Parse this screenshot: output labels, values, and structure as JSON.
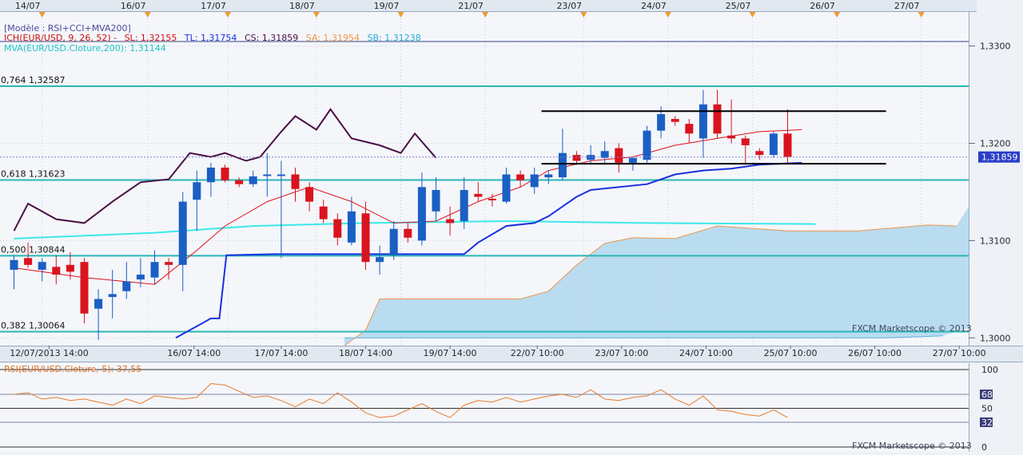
{
  "legend": {
    "model": "[Modèle : RSI+CCI+MVA200]",
    "ich_label": "ICH(EUR/USD, 9, 26, 52) -",
    "sl": "SL: 1,32155",
    "tl": "TL: 1,31754",
    "cs": "CS: 1,31859",
    "sa": "SA: 1,31954",
    "sb": "SB: 1,31238",
    "mva": "MVA(EUR/USD.Cloture,200): 1,31144"
  },
  "rsi_legend": "RSI(EUR/USD.Cloture, 5): 37,55",
  "watermark_main": "FXCM Marketscope © 2013",
  "watermark_rsi": "FXCM Marketscope © 2013",
  "current_price_label": "1,31859",
  "colors": {
    "bull": "#1a5fc4",
    "bear": "#d9141e",
    "tenkan": "#e0101a",
    "kijun": "#1a2fe0",
    "chikou": "#4b0e44",
    "senkou_b": "#f0954a",
    "cloud": "#b4d9ee",
    "mva": "#3ce8e8",
    "fib": "#2ab7b7",
    "rsi": "#e87a2a",
    "box": "#000000",
    "grid": "#c4cfe0"
  },
  "chart_data": [
    {
      "type": "candlestick",
      "title": "",
      "y_range": [
        1.2992,
        1.3335
      ],
      "x_range": [
        0,
        53
      ],
      "top_date_labels": [
        {
          "label": "14/07",
          "x": 2
        },
        {
          "label": "16/07",
          "x": 9.5
        },
        {
          "label": "17/07",
          "x": 15.2
        },
        {
          "label": "18/07",
          "x": 21.5
        },
        {
          "label": "19/07",
          "x": 27.5
        },
        {
          "label": "21/07",
          "x": 33.5
        },
        {
          "label": "23/07",
          "x": 40.5
        },
        {
          "label": "24/07",
          "x": 46.5
        },
        {
          "label": "25/07",
          "x": 52.5
        },
        {
          "label": "26/07",
          "x": 58.5
        },
        {
          "label": "27/07",
          "x": 64.5
        }
      ],
      "bottom_time_labels": [
        {
          "label": "12/07/2013 14:00",
          "x": 2.5
        },
        {
          "label": "16/07 14:00",
          "x": 12.8
        },
        {
          "label": "17/07 14:00",
          "x": 19
        },
        {
          "label": "18/07 14:00",
          "x": 25
        },
        {
          "label": "19/07 14:00",
          "x": 31
        },
        {
          "label": "22/07 10:00",
          "x": 37.2
        },
        {
          "label": "23/07 10:00",
          "x": 43.2
        },
        {
          "label": "24/07 10:00",
          "x": 49.2
        },
        {
          "label": "25/07 10:00",
          "x": 55.2
        },
        {
          "label": "26/07 10:00",
          "x": 61.2
        },
        {
          "label": "27/07 10:00",
          "x": 67.2
        }
      ],
      "y_ticks": [
        {
          "label": "1,3300",
          "value": 1.33
        },
        {
          "label": "1,3200",
          "value": 1.32
        },
        {
          "label": "1,3100",
          "value": 1.31
        },
        {
          "label": "1,3000",
          "value": 1.3
        }
      ],
      "fib_levels": [
        {
          "label": "0,764 1,32587",
          "value": 1.32587
        },
        {
          "label": "0,618 1,31623",
          "value": 1.31623
        },
        {
          "label": "0,500 1,30844",
          "value": 1.30844
        },
        {
          "label": "0,382 1,30064",
          "value": 1.30064
        }
      ],
      "current_price": 1.31859,
      "candles": [
        {
          "o": 1.307,
          "h": 1.3085,
          "l": 1.305,
          "c": 1.308
        },
        {
          "o": 1.3082,
          "h": 1.3098,
          "l": 1.3072,
          "c": 1.3075
        },
        {
          "o": 1.307,
          "h": 1.3082,
          "l": 1.3058,
          "c": 1.3078
        },
        {
          "o": 1.3073,
          "h": 1.3085,
          "l": 1.3055,
          "c": 1.3065
        },
        {
          "o": 1.3075,
          "h": 1.3088,
          "l": 1.306,
          "c": 1.3068
        },
        {
          "o": 1.3078,
          "h": 1.3082,
          "l": 1.3015,
          "c": 1.3025
        },
        {
          "o": 1.303,
          "h": 1.305,
          "l": 1.2998,
          "c": 1.304
        },
        {
          "o": 1.3042,
          "h": 1.307,
          "l": 1.302,
          "c": 1.3045
        },
        {
          "o": 1.3048,
          "h": 1.3078,
          "l": 1.304,
          "c": 1.3058
        },
        {
          "o": 1.306,
          "h": 1.3082,
          "l": 1.3052,
          "c": 1.3065
        },
        {
          "o": 1.3062,
          "h": 1.309,
          "l": 1.3055,
          "c": 1.3078
        },
        {
          "o": 1.3078,
          "h": 1.3082,
          "l": 1.306,
          "c": 1.3075
        },
        {
          "o": 1.3075,
          "h": 1.315,
          "l": 1.3048,
          "c": 1.314
        },
        {
          "o": 1.3142,
          "h": 1.3172,
          "l": 1.311,
          "c": 1.316
        },
        {
          "o": 1.316,
          "h": 1.318,
          "l": 1.3145,
          "c": 1.3175
        },
        {
          "o": 1.3175,
          "h": 1.3178,
          "l": 1.316,
          "c": 1.3162
        },
        {
          "o": 1.3162,
          "h": 1.3165,
          "l": 1.3155,
          "c": 1.3158
        },
        {
          "o": 1.3158,
          "h": 1.3172,
          "l": 1.3155,
          "c": 1.3166
        },
        {
          "o": 1.3168,
          "h": 1.319,
          "l": 1.3145,
          "c": 1.3168
        },
        {
          "o": 1.3168,
          "h": 1.3182,
          "l": 1.3082,
          "c": 1.3168
        },
        {
          "o": 1.3168,
          "h": 1.3175,
          "l": 1.314,
          "c": 1.3153
        },
        {
          "o": 1.3155,
          "h": 1.316,
          "l": 1.313,
          "c": 1.314
        },
        {
          "o": 1.3135,
          "h": 1.3142,
          "l": 1.3118,
          "c": 1.3122
        },
        {
          "o": 1.3122,
          "h": 1.3128,
          "l": 1.3095,
          "c": 1.3103
        },
        {
          "o": 1.3098,
          "h": 1.3145,
          "l": 1.3095,
          "c": 1.313
        },
        {
          "o": 1.3128,
          "h": 1.314,
          "l": 1.307,
          "c": 1.3078
        },
        {
          "o": 1.3078,
          "h": 1.3095,
          "l": 1.3065,
          "c": 1.3083
        },
        {
          "o": 1.3085,
          "h": 1.312,
          "l": 1.308,
          "c": 1.3112
        },
        {
          "o": 1.3112,
          "h": 1.3118,
          "l": 1.3098,
          "c": 1.3103
        },
        {
          "o": 1.31,
          "h": 1.317,
          "l": 1.3095,
          "c": 1.3155
        },
        {
          "o": 1.313,
          "h": 1.3165,
          "l": 1.312,
          "c": 1.3152
        },
        {
          "o": 1.3122,
          "h": 1.3135,
          "l": 1.3105,
          "c": 1.3118
        },
        {
          "o": 1.312,
          "h": 1.3165,
          "l": 1.3112,
          "c": 1.3152
        },
        {
          "o": 1.3148,
          "h": 1.316,
          "l": 1.314,
          "c": 1.3145
        },
        {
          "o": 1.3143,
          "h": 1.3148,
          "l": 1.3135,
          "c": 1.3142
        },
        {
          "o": 1.314,
          "h": 1.3175,
          "l": 1.3138,
          "c": 1.3168
        },
        {
          "o": 1.3168,
          "h": 1.3172,
          "l": 1.3155,
          "c": 1.3162
        },
        {
          "o": 1.3155,
          "h": 1.3175,
          "l": 1.3148,
          "c": 1.3168
        },
        {
          "o": 1.3165,
          "h": 1.3172,
          "l": 1.3158,
          "c": 1.3168
        },
        {
          "o": 1.3165,
          "h": 1.3215,
          "l": 1.3162,
          "c": 1.319
        },
        {
          "o": 1.3188,
          "h": 1.3192,
          "l": 1.3178,
          "c": 1.3182
        },
        {
          "o": 1.3183,
          "h": 1.3198,
          "l": 1.318,
          "c": 1.3188
        },
        {
          "o": 1.3185,
          "h": 1.3202,
          "l": 1.3178,
          "c": 1.3192
        },
        {
          "o": 1.3195,
          "h": 1.32,
          "l": 1.317,
          "c": 1.318
        },
        {
          "o": 1.318,
          "h": 1.3185,
          "l": 1.3172,
          "c": 1.3185
        },
        {
          "o": 1.3183,
          "h": 1.3218,
          "l": 1.318,
          "c": 1.3213
        },
        {
          "o": 1.3213,
          "h": 1.3238,
          "l": 1.3205,
          "c": 1.323
        },
        {
          "o": 1.3225,
          "h": 1.3228,
          "l": 1.3218,
          "c": 1.3222
        },
        {
          "o": 1.322,
          "h": 1.3225,
          "l": 1.32,
          "c": 1.321
        },
        {
          "o": 1.3205,
          "h": 1.3255,
          "l": 1.3185,
          "c": 1.324
        },
        {
          "o": 1.324,
          "h": 1.3255,
          "l": 1.3205,
          "c": 1.321
        },
        {
          "o": 1.3208,
          "h": 1.3245,
          "l": 1.32,
          "c": 1.3205
        },
        {
          "o": 1.3205,
          "h": 1.3208,
          "l": 1.3178,
          "c": 1.3198
        },
        {
          "o": 1.3192,
          "h": 1.3195,
          "l": 1.3183,
          "c": 1.3188
        },
        {
          "o": 1.3188,
          "h": 1.3212,
          "l": 1.3185,
          "c": 1.321
        },
        {
          "o": 1.321,
          "h": 1.3235,
          "l": 1.318,
          "c": 1.3186
        }
      ],
      "tenkan": [
        [
          0,
          1.3072
        ],
        [
          5,
          1.3062
        ],
        [
          10,
          1.3055
        ],
        [
          13,
          1.309
        ],
        [
          15,
          1.3115
        ],
        [
          18,
          1.314
        ],
        [
          21,
          1.3155
        ],
        [
          24,
          1.314
        ],
        [
          27,
          1.3118
        ],
        [
          30,
          1.312
        ],
        [
          33,
          1.314
        ],
        [
          36,
          1.3155
        ],
        [
          38,
          1.3172
        ],
        [
          41,
          1.3182
        ],
        [
          44,
          1.3186
        ],
        [
          47,
          1.3198
        ],
        [
          50,
          1.3205
        ],
        [
          53,
          1.3212
        ],
        [
          56,
          1.3214
        ]
      ],
      "kijun": [
        [
          11.5,
          1.3
        ],
        [
          14,
          1.302
        ],
        [
          14.6,
          1.302
        ],
        [
          15.1,
          1.3085
        ],
        [
          18.5,
          1.3086
        ],
        [
          32,
          1.3086
        ],
        [
          33,
          1.3098
        ],
        [
          35,
          1.3115
        ],
        [
          37,
          1.3118
        ],
        [
          38,
          1.3125
        ],
        [
          40,
          1.3145
        ],
        [
          41,
          1.3152
        ],
        [
          45,
          1.3158
        ],
        [
          47,
          1.3168
        ],
        [
          49,
          1.3172
        ],
        [
          51,
          1.3174
        ],
        [
          53,
          1.3178
        ],
        [
          56,
          1.318
        ]
      ],
      "chikou": [
        [
          0,
          1.311
        ],
        [
          1,
          1.3138
        ],
        [
          3,
          1.3122
        ],
        [
          5,
          1.3118
        ],
        [
          7,
          1.314
        ],
        [
          9,
          1.316
        ],
        [
          11,
          1.3163
        ],
        [
          12.5,
          1.319
        ],
        [
          14,
          1.3186
        ],
        [
          15,
          1.319
        ],
        [
          16.5,
          1.3182
        ],
        [
          17.5,
          1.3186
        ],
        [
          19,
          1.3212
        ],
        [
          20,
          1.3228
        ],
        [
          21.5,
          1.3214
        ],
        [
          22.5,
          1.3235
        ],
        [
          24,
          1.3205
        ],
        [
          26,
          1.3198
        ],
        [
          27.5,
          1.319
        ],
        [
          28.5,
          1.321
        ],
        [
          30,
          1.3185
        ]
      ],
      "mva": [
        [
          0,
          1.3102
        ],
        [
          10,
          1.3108
        ],
        [
          17,
          1.3115
        ],
        [
          25,
          1.3118
        ],
        [
          35,
          1.312
        ],
        [
          45,
          1.3118
        ],
        [
          57,
          1.3117
        ]
      ],
      "senkou_b": [
        [
          23.5,
          1.2992
        ],
        [
          25,
          1.3008
        ],
        [
          26,
          1.304
        ],
        [
          36,
          1.304
        ],
        [
          38,
          1.3048
        ],
        [
          40,
          1.3075
        ],
        [
          42,
          1.3097
        ],
        [
          44,
          1.3103
        ],
        [
          47,
          1.3102
        ],
        [
          50,
          1.3115
        ],
        [
          55,
          1.311
        ],
        [
          60,
          1.311
        ],
        [
          65,
          1.3116
        ],
        [
          67,
          1.3115
        ],
        [
          70,
          1.3135
        ],
        [
          73,
          1.3133
        ],
        [
          75,
          1.3145
        ],
        [
          78,
          1.3158
        ],
        [
          80,
          1.316
        ],
        [
          83,
          1.3164
        ]
      ],
      "senkou_a": [
        [
          23.5,
          1.3
        ],
        [
          62,
          1.3
        ],
        [
          66,
          1.3002
        ],
        [
          68,
          1.301
        ],
        [
          69,
          1.303
        ],
        [
          69.5,
          1.306
        ],
        [
          70.5,
          1.3095
        ],
        [
          72,
          1.3118
        ],
        [
          73,
          1.315
        ],
        [
          74,
          1.3164
        ]
      ],
      "range_box": [
        {
          "x1": 37.5,
          "x2": 62,
          "y": 1.3233
        },
        {
          "x1": 37.5,
          "x2": 62,
          "y": 1.3179
        }
      ]
    },
    {
      "type": "line",
      "title": "",
      "y_range": [
        0,
        100
      ],
      "y_ticks": [
        {
          "label": "100",
          "value": 100
        },
        {
          "label": "68",
          "value": 68
        },
        {
          "label": "50",
          "value": 50
        },
        {
          "label": "32",
          "value": 32
        },
        {
          "label": "0",
          "value": 0
        }
      ],
      "series": [
        {
          "name": "RSI(EUR/USD.Cloture, 5)",
          "values": [
            68,
            70,
            62,
            64,
            60,
            62,
            58,
            54,
            62,
            56,
            66,
            64,
            62,
            64,
            82,
            80,
            72,
            64,
            66,
            60,
            52,
            62,
            56,
            70,
            58,
            44,
            38,
            40,
            48,
            56,
            46,
            38,
            54,
            60,
            58,
            64,
            58,
            62,
            66,
            68,
            64,
            74,
            62,
            60,
            64,
            66,
            74,
            62,
            54,
            66,
            48,
            46,
            42,
            40,
            48,
            38
          ]
        }
      ]
    }
  ]
}
